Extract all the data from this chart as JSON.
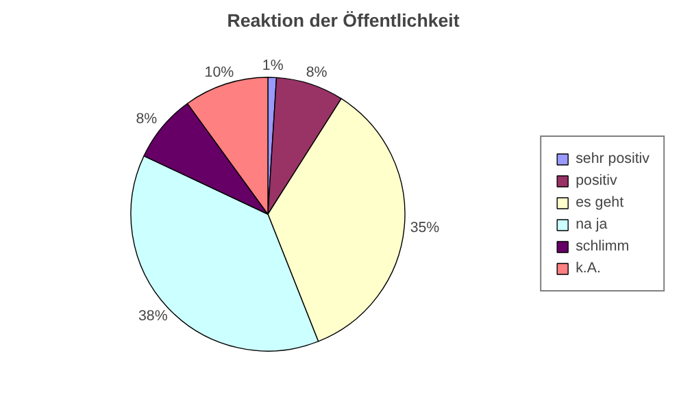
{
  "chart_data": {
    "type": "pie",
    "title": "Reaktion der Öffentlichkeit",
    "categories": [
      "sehr positiv",
      "positiv",
      "es geht",
      "na ja",
      "schlimm",
      "k.A."
    ],
    "values": [
      1,
      8,
      35,
      38,
      8,
      10
    ],
    "colors": [
      "#9999ff",
      "#993366",
      "#ffffcc",
      "#ccffff",
      "#660066",
      "#ff8080"
    ],
    "value_labels": [
      "1%",
      "8%",
      "35%",
      "38%",
      "8%",
      "10%"
    ],
    "legend": "right"
  }
}
